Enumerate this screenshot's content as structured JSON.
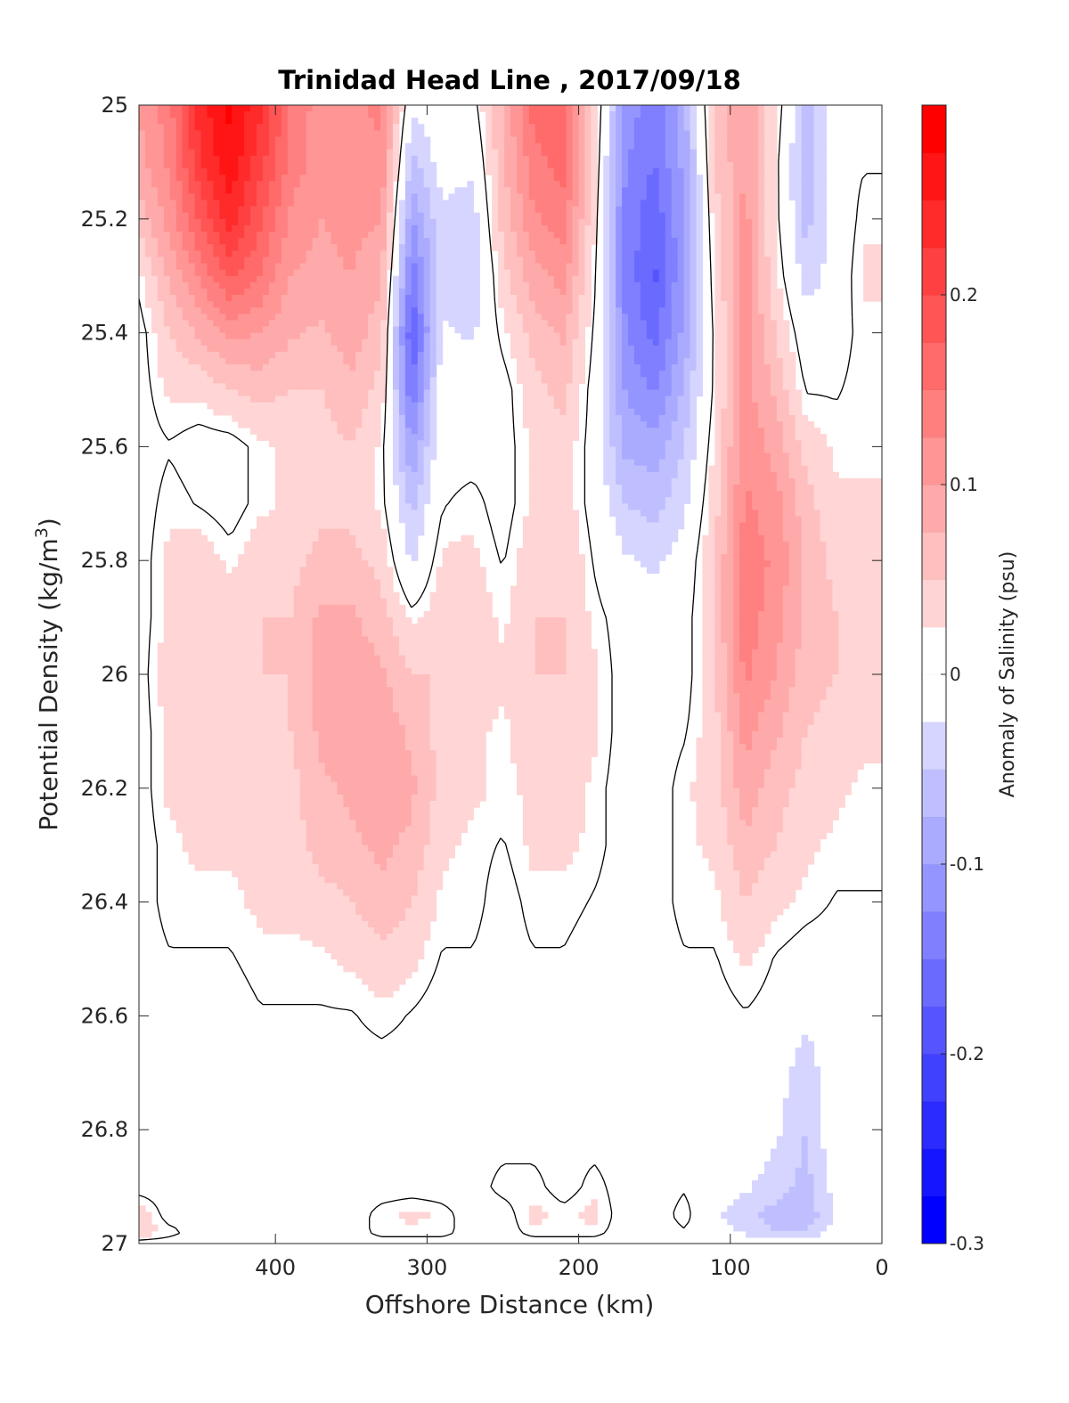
{
  "chart_data": {
    "type": "heatmap",
    "subtype": "filled-contour",
    "title": "Trinidad Head Line , 2017/09/18",
    "xlabel": "Offshore Distance (km)",
    "ylabel_main": "Potential Density (kg/m",
    "ylabel_sup": "3",
    "ylabel_end": ")",
    "xlim": [
      490,
      0
    ],
    "x_reversed": true,
    "ylim": [
      25,
      27
    ],
    "y_reversed": true,
    "xticks": [
      400,
      300,
      200,
      100,
      0
    ],
    "xtick_labels": [
      "400",
      "300",
      "200",
      "100",
      "0"
    ],
    "yticks": [
      25,
      25.2,
      25.4,
      25.6,
      25.8,
      26,
      26.2,
      26.4,
      26.6,
      26.8,
      27
    ],
    "ytick_labels": [
      "25",
      "25.2",
      "25.4",
      "25.6",
      "25.8",
      "26",
      "26.2",
      "26.4",
      "26.6",
      "26.8",
      "27"
    ],
    "colorbar": {
      "label": "Anomaly of Salinity (psu)",
      "range": [
        -0.3,
        0.3
      ],
      "step": 0.025,
      "ticks": [
        0.2,
        0.1,
        0,
        -0.1,
        -0.2,
        -0.3
      ],
      "tick_labels": [
        "0.2",
        "0.1",
        "0",
        "-0.1",
        "-0.2",
        "-0.3"
      ],
      "color_negative_max": "#0000ff",
      "color_zero": "#ffffff",
      "color_positive_max": "#ff0000"
    },
    "grid": false,
    "sections": [
      {
        "x": 490,
        "anomaly": [
          0.1,
          0.09,
          0.06,
          0.02,
          0.0,
          0.0,
          0.0,
          0.0,
          0.0,
          0.0,
          0.0,
          0.0,
          0.0,
          0.0,
          0.0,
          0.0,
          0.0,
          0.0,
          0.0,
          0.0,
          0.04,
          0.04,
          0.0
        ]
      },
      {
        "x": 470,
        "anomaly": [
          0.14,
          0.13,
          0.11,
          0.08,
          0.05,
          0.03,
          0.01,
          0.02,
          0.03,
          0.03,
          0.04,
          0.03,
          0.03,
          0.02,
          0.02,
          0.01,
          0.0,
          0.0,
          0.0,
          0.0,
          0.0,
          0.02,
          0.0
        ]
      },
      {
        "x": 450,
        "anomaly": [
          0.24,
          0.22,
          0.18,
          0.13,
          0.08,
          0.03,
          0.0,
          0.01,
          0.04,
          0.05,
          0.05,
          0.04,
          0.03,
          0.03,
          0.02,
          0.01,
          0.0,
          0.0,
          0.0,
          0.0,
          0.0,
          0.0,
          0.0
        ]
      },
      {
        "x": 430,
        "anomaly": [
          0.28,
          0.27,
          0.24,
          0.18,
          0.11,
          0.05,
          0.0,
          0.0,
          0.02,
          0.04,
          0.05,
          0.04,
          0.03,
          0.03,
          0.02,
          0.01,
          0.0,
          0.0,
          0.0,
          0.0,
          0.0,
          0.0,
          0.0
        ]
      },
      {
        "x": 410,
        "anomaly": [
          0.23,
          0.21,
          0.18,
          0.15,
          0.1,
          0.06,
          0.02,
          0.02,
          0.04,
          0.05,
          0.05,
          0.04,
          0.03,
          0.03,
          0.03,
          0.02,
          0.01,
          0.0,
          0.0,
          0.0,
          0.0,
          0.0,
          0.0
        ]
      },
      {
        "x": 390,
        "anomaly": [
          0.15,
          0.14,
          0.12,
          0.1,
          0.08,
          0.05,
          0.03,
          0.03,
          0.04,
          0.05,
          0.05,
          0.05,
          0.04,
          0.04,
          0.03,
          0.02,
          0.01,
          0.0,
          0.0,
          0.0,
          0.0,
          0.0,
          0.0
        ]
      },
      {
        "x": 370,
        "anomaly": [
          0.11,
          0.11,
          0.1,
          0.09,
          0.07,
          0.05,
          0.04,
          0.04,
          0.06,
          0.08,
          0.09,
          0.08,
          0.07,
          0.06,
          0.04,
          0.02,
          0.01,
          0.0,
          0.0,
          0.0,
          0.0,
          0.0,
          0.0
        ]
      },
      {
        "x": 350,
        "anomaly": [
          0.12,
          0.12,
          0.11,
          0.1,
          0.09,
          0.07,
          0.05,
          0.04,
          0.06,
          0.08,
          0.09,
          0.09,
          0.08,
          0.07,
          0.05,
          0.03,
          0.01,
          0.0,
          0.0,
          0.0,
          0.0,
          0.0,
          0.0
        ]
      },
      {
        "x": 330,
        "anomaly": [
          0.13,
          0.12,
          0.1,
          0.08,
          0.06,
          0.04,
          0.02,
          0.02,
          0.04,
          0.06,
          0.08,
          0.09,
          0.09,
          0.08,
          0.07,
          0.04,
          0.02,
          0.0,
          0.0,
          0.0,
          0.02,
          0.02,
          0.0
        ]
      },
      {
        "x": 310,
        "anomaly": [
          -0.02,
          -0.06,
          -0.1,
          -0.14,
          -0.18,
          -0.15,
          -0.1,
          -0.06,
          -0.03,
          0.02,
          0.05,
          0.07,
          0.08,
          0.07,
          0.05,
          0.03,
          0.01,
          0.0,
          0.0,
          0.0,
          0.03,
          0.02,
          0.0
        ]
      },
      {
        "x": 290,
        "anomaly": [
          0.0,
          -0.01,
          -0.03,
          -0.04,
          -0.02,
          0.0,
          0.0,
          0.01,
          0.03,
          0.04,
          0.05,
          0.04,
          0.04,
          0.03,
          0.02,
          0.01,
          0.0,
          0.0,
          0.0,
          0.0,
          0.02,
          0.02,
          0.0
        ]
      },
      {
        "x": 270,
        "anomaly": [
          0.0,
          -0.02,
          -0.04,
          -0.05,
          -0.03,
          0.0,
          0.0,
          0.02,
          0.03,
          0.04,
          0.04,
          0.03,
          0.03,
          0.02,
          0.02,
          0.01,
          0.0,
          0.0,
          0.0,
          0.0,
          0.0,
          0.0,
          0.0
        ]
      },
      {
        "x": 250,
        "anomaly": [
          0.08,
          0.07,
          0.06,
          0.04,
          0.02,
          0.0,
          0.0,
          0.0,
          0.01,
          0.02,
          0.03,
          0.02,
          0.02,
          0.01,
          0.0,
          0.0,
          0.0,
          0.0,
          0.0,
          0.02,
          0.0,
          0.0,
          0.0
        ]
      },
      {
        "x": 230,
        "anomaly": [
          0.16,
          0.14,
          0.12,
          0.09,
          0.06,
          0.04,
          0.03,
          0.03,
          0.04,
          0.05,
          0.05,
          0.04,
          0.03,
          0.03,
          0.02,
          0.01,
          0.0,
          0.0,
          0.0,
          0.02,
          0.03,
          0.02,
          0.0
        ]
      },
      {
        "x": 210,
        "anomaly": [
          0.17,
          0.16,
          0.14,
          0.11,
          0.08,
          0.06,
          0.04,
          0.04,
          0.05,
          0.05,
          0.05,
          0.04,
          0.04,
          0.03,
          0.02,
          0.01,
          0.0,
          0.0,
          0.0,
          0.0,
          0.02,
          0.02,
          0.0
        ]
      },
      {
        "x": 190,
        "anomaly": [
          0.05,
          0.04,
          0.03,
          0.02,
          0.01,
          0.0,
          0.0,
          0.0,
          0.01,
          0.02,
          0.03,
          0.03,
          0.02,
          0.02,
          0.01,
          0.0,
          0.0,
          0.0,
          0.0,
          0.02,
          0.03,
          0.02,
          0.0
        ]
      },
      {
        "x": 170,
        "anomaly": [
          -0.11,
          -0.12,
          -0.13,
          -0.13,
          -0.12,
          -0.1,
          -0.08,
          -0.05,
          -0.02,
          0.0,
          0.0,
          0.0,
          0.0,
          0.0,
          0.0,
          0.0,
          0.0,
          0.0,
          0.0,
          0.0,
          0.0,
          0.0,
          0.0
        ]
      },
      {
        "x": 150,
        "anomaly": [
          -0.14,
          -0.15,
          -0.17,
          -0.18,
          -0.16,
          -0.13,
          -0.09,
          -0.06,
          -0.03,
          -0.01,
          0.0,
          0.0,
          0.0,
          0.0,
          0.0,
          0.0,
          0.0,
          0.0,
          0.0,
          0.0,
          0.0,
          0.0,
          0.0
        ]
      },
      {
        "x": 130,
        "anomaly": [
          -0.08,
          -0.09,
          -0.1,
          -0.1,
          -0.09,
          -0.07,
          -0.05,
          -0.03,
          -0.01,
          0.0,
          0.0,
          0.01,
          0.02,
          0.02,
          0.02,
          0.01,
          0.0,
          0.0,
          0.0,
          0.01,
          0.02,
          0.01,
          0.0
        ]
      },
      {
        "x": 110,
        "anomaly": [
          0.06,
          0.05,
          0.04,
          0.03,
          0.02,
          0.02,
          0.03,
          0.04,
          0.05,
          0.05,
          0.05,
          0.04,
          0.04,
          0.03,
          0.02,
          0.01,
          0.0,
          0.0,
          0.0,
          -0.01,
          -0.02,
          -0.01,
          0.0
        ]
      },
      {
        "x": 90,
        "anomaly": [
          0.1,
          0.1,
          0.11,
          0.11,
          0.11,
          0.11,
          0.12,
          0.13,
          0.14,
          0.14,
          0.13,
          0.11,
          0.09,
          0.07,
          0.05,
          0.03,
          0.01,
          0.0,
          0.0,
          -0.02,
          -0.04,
          -0.03,
          0.0
        ]
      },
      {
        "x": 70,
        "anomaly": [
          0.03,
          0.02,
          0.02,
          0.03,
          0.05,
          0.07,
          0.09,
          0.11,
          0.12,
          0.11,
          0.1,
          0.08,
          0.06,
          0.05,
          0.03,
          0.01,
          0.0,
          -0.01,
          -0.02,
          -0.04,
          -0.06,
          -0.05,
          0.0
        ]
      },
      {
        "x": 50,
        "anomaly": [
          -0.06,
          -0.07,
          -0.06,
          -0.04,
          -0.01,
          0.01,
          0.04,
          0.06,
          0.07,
          0.07,
          0.06,
          0.05,
          0.04,
          0.03,
          0.02,
          0.0,
          -0.02,
          -0.04,
          -0.05,
          -0.06,
          -0.07,
          -0.05,
          0.0
        ]
      },
      {
        "x": 30,
        "anomaly": [
          0.0,
          0.0,
          -0.01,
          -0.01,
          0.0,
          0.01,
          0.02,
          0.03,
          0.04,
          0.05,
          0.05,
          0.04,
          0.03,
          0.02,
          0.01,
          0.0,
          0.0,
          0.0,
          0.0,
          -0.01,
          -0.02,
          -0.01,
          0.0
        ]
      },
      {
        "x": 12,
        "anomaly": [
          0.0,
          0.01,
          0.02,
          0.03,
          0.02,
          0.02,
          0.02,
          0.03,
          0.04,
          0.04,
          0.03,
          0.03,
          0.02,
          0.02,
          0.01,
          0.0,
          0.0,
          0.0,
          0.0,
          0.0,
          0.0,
          0.0,
          0.0
        ]
      }
    ],
    "sigma_levels": [
      25.0,
      25.1,
      25.2,
      25.3,
      25.4,
      25.5,
      25.6,
      25.7,
      25.8,
      25.9,
      26.0,
      26.1,
      26.2,
      26.3,
      26.4,
      26.5,
      26.6,
      26.7,
      26.8,
      26.9,
      26.95,
      26.98,
      27.0
    ]
  }
}
